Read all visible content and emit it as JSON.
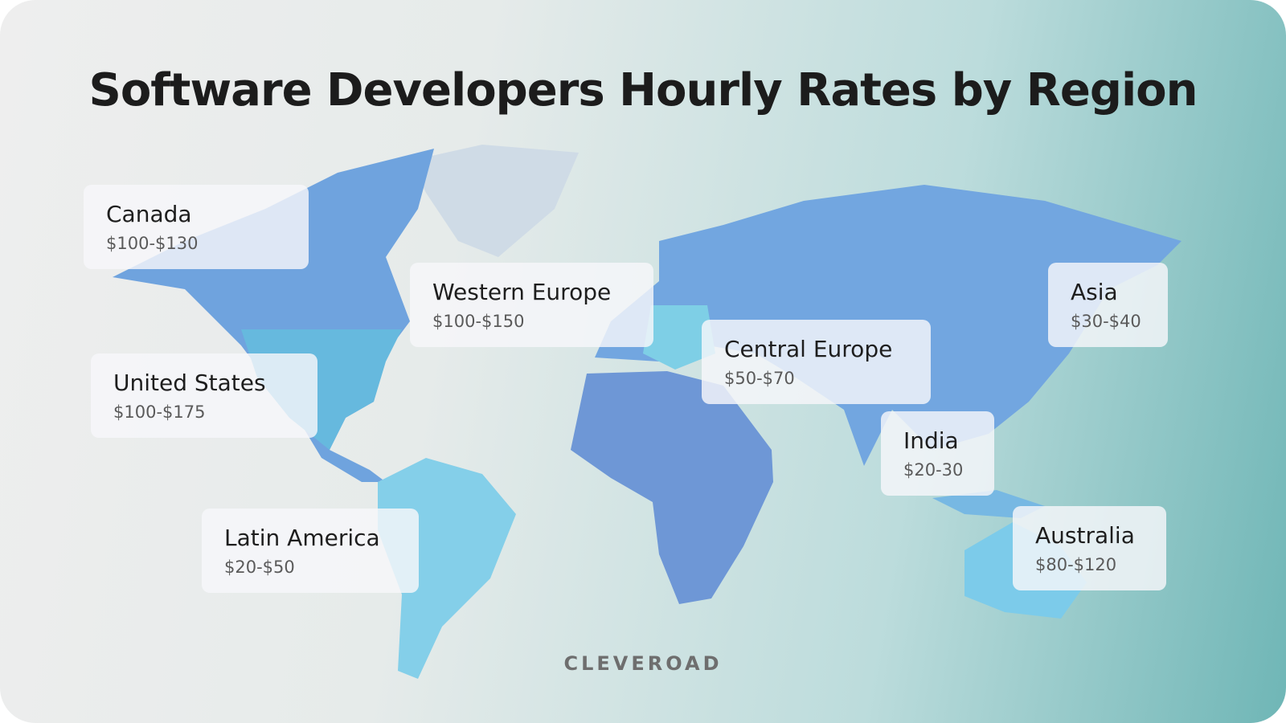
{
  "title": "Software Developers Hourly Rates by Region",
  "regions": [
    {
      "name": "Canada",
      "rate": "$100-$130"
    },
    {
      "name": "Western Europe",
      "rate": "$100-$150"
    },
    {
      "name": "United States",
      "rate": "$100-$175"
    },
    {
      "name": "Central Europe",
      "rate": "$50-$70"
    },
    {
      "name": "Asia",
      "rate": "$30-$40"
    },
    {
      "name": "India",
      "rate": "$20-30"
    },
    {
      "name": "Latin America",
      "rate": "$20-$50"
    },
    {
      "name": "Australia",
      "rate": "$80-$120"
    }
  ],
  "brand": "CLEVEROAD"
}
